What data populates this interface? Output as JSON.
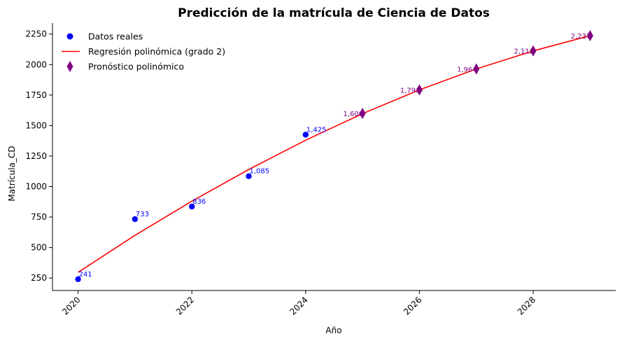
{
  "chart_data": {
    "type": "scatter",
    "title": "Predicción de la matrícula de Ciencia de Datos",
    "xlabel": "Año",
    "ylabel": "Matrícula_CD",
    "xlim": [
      2019.55,
      2029.45
    ],
    "ylim": [
      148,
      2340
    ],
    "x_ticks": [
      2020,
      2022,
      2024,
      2026,
      2028
    ],
    "y_ticks": [
      250,
      500,
      750,
      1000,
      1250,
      1500,
      1750,
      2000,
      2250
    ],
    "grid": false,
    "legend_position": "top-left",
    "series": [
      {
        "name": "Datos reales",
        "kind": "scatter",
        "marker": "circle",
        "color": "#0000ff",
        "x": [
          2020,
          2021,
          2022,
          2023,
          2024
        ],
        "y": [
          241,
          733,
          836,
          1085,
          1425
        ],
        "labels": [
          "241",
          "733",
          "836",
          "1,085",
          "1,425"
        ]
      },
      {
        "name": "Regresión polinómica (grado 2)",
        "kind": "line",
        "color": "#ff0000",
        "x": [
          2020,
          2021,
          2022,
          2023,
          2024,
          2025,
          2026,
          2027,
          2028,
          2029
        ],
        "y": [
          297,
          600,
          880,
          1140,
          1380,
          1598,
          1793,
          1964,
          2112,
          2237
        ]
      },
      {
        "name": "Pronóstico polinómico",
        "kind": "scatter",
        "marker": "diamond",
        "color": "#800080",
        "x": [
          2025,
          2026,
          2027,
          2028,
          2029
        ],
        "y": [
          1600,
          1793,
          1964,
          2112,
          2237
        ],
        "labels": [
          "1,600",
          "1,793",
          "1,964",
          "2,112",
          "2,237"
        ]
      }
    ]
  }
}
